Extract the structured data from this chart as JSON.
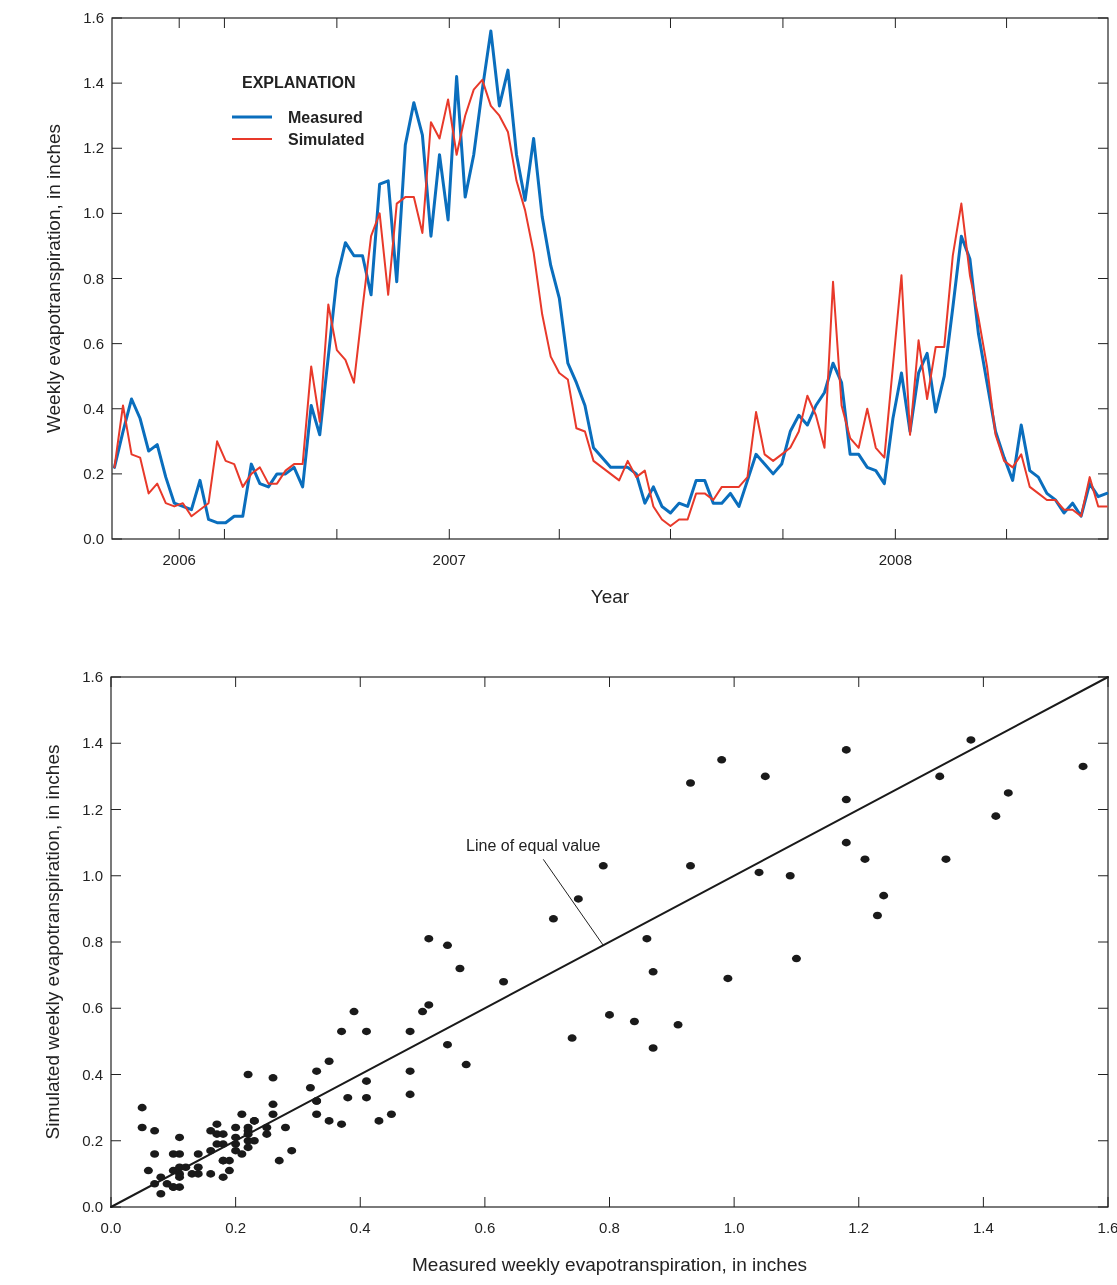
{
  "chart_data": [
    {
      "type": "line",
      "xlabel": "Year",
      "ylabel": "Weekly evapotranspiration, in inches",
      "legend_title": "EXPLANATION",
      "legend": "top left",
      "x": [
        "2006-04-02",
        "2006-04-09",
        "2006-04-16",
        "2006-04-23",
        "2006-04-30",
        "2006-05-07",
        "2006-05-14",
        "2006-05-21",
        "2006-05-28",
        "2006-06-04",
        "2006-06-11",
        "2006-06-18",
        "2006-06-25",
        "2006-07-02",
        "2006-07-09",
        "2006-07-16",
        "2006-07-23",
        "2006-07-30",
        "2006-08-06",
        "2006-08-13",
        "2006-08-20",
        "2006-08-27",
        "2006-09-03",
        "2006-09-10",
        "2006-09-17",
        "2006-09-24",
        "2006-10-01",
        "2006-10-08",
        "2006-10-15",
        "2006-10-22",
        "2006-10-29",
        "2006-11-05",
        "2006-11-12",
        "2006-11-19",
        "2006-11-26",
        "2006-12-03",
        "2006-12-10",
        "2006-12-17",
        "2006-12-24",
        "2006-12-31",
        "2007-01-07",
        "2007-01-14",
        "2007-01-21",
        "2007-01-28",
        "2007-02-04",
        "2007-02-11",
        "2007-02-18",
        "2007-02-25",
        "2007-03-04",
        "2007-03-11",
        "2007-03-18",
        "2007-03-25",
        "2007-04-01",
        "2007-04-08",
        "2007-04-15",
        "2007-04-22",
        "2007-04-29",
        "2007-05-06",
        "2007-05-13",
        "2007-05-20",
        "2007-05-27",
        "2007-06-03",
        "2007-06-10",
        "2007-06-17",
        "2007-06-24",
        "2007-07-01",
        "2007-07-08",
        "2007-07-15",
        "2007-07-22",
        "2007-07-29",
        "2007-08-05",
        "2007-08-12",
        "2007-08-19",
        "2007-08-26",
        "2007-09-02",
        "2007-09-09",
        "2007-09-16",
        "2007-09-23",
        "2007-09-30",
        "2007-10-07",
        "2007-10-14",
        "2007-10-21",
        "2007-10-28",
        "2007-11-04",
        "2007-11-11",
        "2007-11-18",
        "2007-11-25",
        "2007-12-02",
        "2007-12-09",
        "2007-12-16",
        "2007-12-23",
        "2007-12-30",
        "2008-01-06",
        "2008-01-13",
        "2008-01-20",
        "2008-01-27",
        "2008-02-03",
        "2008-02-10",
        "2008-02-17",
        "2008-02-24",
        "2008-03-02",
        "2008-03-09",
        "2008-03-16",
        "2008-03-23",
        "2008-03-30",
        "2008-04-06",
        "2008-04-13",
        "2008-04-20",
        "2008-04-27",
        "2008-05-04",
        "2008-05-11",
        "2008-05-18",
        "2008-05-25",
        "2008-06-01",
        "2008-06-08",
        "2008-06-15",
        "2008-06-22"
      ],
      "series": [
        {
          "name": "Measured",
          "color": "#0a6ebd",
          "values": [
            0.22,
            0.33,
            0.43,
            0.37,
            0.27,
            0.29,
            0.19,
            0.11,
            0.1,
            0.09,
            0.18,
            0.06,
            0.05,
            0.05,
            0.07,
            0.07,
            0.23,
            0.17,
            0.16,
            0.2,
            0.2,
            0.22,
            0.16,
            0.41,
            0.32,
            0.56,
            0.8,
            0.91,
            0.87,
            0.87,
            0.75,
            1.09,
            1.1,
            0.79,
            1.21,
            1.34,
            1.24,
            0.93,
            1.18,
            0.98,
            1.42,
            1.05,
            1.18,
            1.38,
            1.56,
            1.33,
            1.44,
            1.18,
            1.04,
            1.23,
            0.99,
            0.84,
            0.74,
            0.54,
            0.48,
            0.41,
            0.28,
            0.25,
            0.22,
            0.22,
            0.22,
            0.2,
            0.11,
            0.16,
            0.1,
            0.08,
            0.11,
            0.1,
            0.18,
            0.18,
            0.11,
            0.11,
            0.14,
            0.1,
            0.18,
            0.26,
            0.23,
            0.2,
            0.23,
            0.33,
            0.38,
            0.35,
            0.41,
            0.45,
            0.54,
            0.48,
            0.26,
            0.26,
            0.22,
            0.21,
            0.17,
            0.37,
            0.51,
            0.33,
            0.51,
            0.57,
            0.39,
            0.5,
            0.71,
            0.93,
            0.86,
            0.63,
            0.48,
            0.33,
            0.25,
            0.18,
            0.35,
            0.21,
            0.19,
            0.14,
            0.12,
            0.08,
            0.11,
            0.07,
            0.17,
            0.13,
            0.14
          ]
        },
        {
          "name": "Simulated",
          "color": "#e8392a",
          "values": [
            0.22,
            0.41,
            0.26,
            0.25,
            0.14,
            0.17,
            0.11,
            0.1,
            0.11,
            0.07,
            0.09,
            0.11,
            0.3,
            0.24,
            0.23,
            0.16,
            0.2,
            0.22,
            0.17,
            0.17,
            0.21,
            0.23,
            0.23,
            0.53,
            0.36,
            0.72,
            0.58,
            0.55,
            0.48,
            0.71,
            0.93,
            1.0,
            0.75,
            1.03,
            1.05,
            1.05,
            0.94,
            1.28,
            1.23,
            1.35,
            1.18,
            1.3,
            1.38,
            1.41,
            1.33,
            1.3,
            1.25,
            1.1,
            1.01,
            0.88,
            0.69,
            0.56,
            0.51,
            0.49,
            0.34,
            0.33,
            0.24,
            0.22,
            0.2,
            0.18,
            0.24,
            0.19,
            0.21,
            0.1,
            0.06,
            0.04,
            0.06,
            0.06,
            0.14,
            0.14,
            0.12,
            0.16,
            0.16,
            0.16,
            0.19,
            0.39,
            0.26,
            0.24,
            0.26,
            0.28,
            0.33,
            0.44,
            0.38,
            0.28,
            0.79,
            0.41,
            0.31,
            0.28,
            0.4,
            0.28,
            0.25,
            0.53,
            0.81,
            0.32,
            0.61,
            0.43,
            0.59,
            0.59,
            0.87,
            1.03,
            0.81,
            0.68,
            0.53,
            0.32,
            0.24,
            0.22,
            0.26,
            0.16,
            0.14,
            0.12,
            0.12,
            0.09,
            0.09,
            0.07,
            0.19,
            0.1,
            0.1
          ]
        }
      ],
      "xlim": [
        "2006-03-31",
        "2008-06-23"
      ],
      "xticks": [
        {
          "value": "2006-05-25",
          "label": "2006"
        },
        {
          "value": "2006-07-01",
          "label": null
        },
        {
          "value": "2006-10-01",
          "label": null
        },
        {
          "value": "2007-01-01",
          "label": "2007"
        },
        {
          "value": "2007-04-01",
          "label": null
        },
        {
          "value": "2007-07-01",
          "label": null
        },
        {
          "value": "2007-10-01",
          "label": null
        },
        {
          "value": "2008-01-01",
          "label": "2008"
        },
        {
          "value": "2008-04-01",
          "label": null
        }
      ],
      "ylim": [
        0,
        1.6
      ],
      "yticks": [
        {
          "value": 0,
          "label": "0.0"
        },
        {
          "value": 0.2,
          "label": "0.2"
        },
        {
          "value": 0.4,
          "label": "0.4"
        },
        {
          "value": 0.6,
          "label": "0.6"
        },
        {
          "value": 0.8,
          "label": "0.8"
        },
        {
          "value": 1,
          "label": "1.0"
        },
        {
          "value": 1.2,
          "label": "1.2"
        },
        {
          "value": 1.4,
          "label": "1.4"
        },
        {
          "value": 1.6,
          "label": "1.6"
        }
      ]
    },
    {
      "type": "scatter",
      "xlabel": "Measured weekly evapotranspiration, in inches",
      "ylabel": "Simulated weekly evapotranspiration, in inches",
      "annotations": [
        {
          "text": "Line of equal value",
          "x": 0.79,
          "y": 0.79
        }
      ],
      "series": [
        {
          "color": "#1a1a1a",
          "marker": "circle",
          "x": [
            0.22,
            0.33,
            0.43,
            0.37,
            0.27,
            0.29,
            0.19,
            0.11,
            0.1,
            0.09,
            0.18,
            0.06,
            0.05,
            0.05,
            0.07,
            0.07,
            0.23,
            0.17,
            0.16,
            0.2,
            0.2,
            0.22,
            0.16,
            0.41,
            0.32,
            0.56,
            0.8,
            0.91,
            0.87,
            0.87,
            0.75,
            1.09,
            1.1,
            0.79,
            1.21,
            1.34,
            1.24,
            0.93,
            1.18,
            0.98,
            1.42,
            1.05,
            1.18,
            1.38,
            1.56,
            1.33,
            1.44,
            1.18,
            1.04,
            1.23,
            0.99,
            0.84,
            0.74,
            0.54,
            0.48,
            0.41,
            0.28,
            0.25,
            0.22,
            0.22,
            0.22,
            0.2,
            0.11,
            0.16,
            0.1,
            0.08,
            0.11,
            0.1,
            0.18,
            0.18,
            0.11,
            0.11,
            0.14,
            0.1,
            0.18,
            0.26,
            0.23,
            0.2,
            0.23,
            0.33,
            0.38,
            0.35,
            0.41,
            0.45,
            0.54,
            0.48,
            0.26,
            0.26,
            0.22,
            0.21,
            0.17,
            0.37,
            0.51,
            0.33,
            0.51,
            0.57,
            0.39,
            0.5,
            0.71,
            0.93,
            0.86,
            0.63,
            0.48,
            0.33,
            0.25,
            0.18,
            0.35,
            0.21,
            0.19,
            0.14,
            0.12,
            0.08,
            0.11,
            0.07,
            0.17,
            0.13,
            0.14
          ],
          "values": [
            0.22,
            0.41,
            0.26,
            0.25,
            0.14,
            0.17,
            0.11,
            0.1,
            0.11,
            0.07,
            0.09,
            0.11,
            0.3,
            0.24,
            0.23,
            0.16,
            0.2,
            0.22,
            0.17,
            0.17,
            0.21,
            0.23,
            0.23,
            0.53,
            0.36,
            0.72,
            0.58,
            0.55,
            0.48,
            0.71,
            0.93,
            1.0,
            0.75,
            1.03,
            1.05,
            1.05,
            0.94,
            1.28,
            1.23,
            1.35,
            1.18,
            1.3,
            1.38,
            1.41,
            1.33,
            1.3,
            1.25,
            1.1,
            1.01,
            0.88,
            0.69,
            0.56,
            0.51,
            0.49,
            0.34,
            0.33,
            0.24,
            0.22,
            0.2,
            0.18,
            0.24,
            0.19,
            0.21,
            0.1,
            0.06,
            0.04,
            0.06,
            0.06,
            0.14,
            0.14,
            0.12,
            0.16,
            0.16,
            0.16,
            0.19,
            0.39,
            0.26,
            0.24,
            0.26,
            0.28,
            0.33,
            0.44,
            0.38,
            0.28,
            0.79,
            0.41,
            0.31,
            0.28,
            0.4,
            0.28,
            0.25,
            0.53,
            0.81,
            0.32,
            0.61,
            0.43,
            0.59,
            0.59,
            0.87,
            1.03,
            0.81,
            0.68,
            0.53,
            0.32,
            0.24,
            0.22,
            0.26,
            0.16,
            0.14,
            0.12,
            0.12,
            0.09,
            0.09,
            0.07,
            0.19,
            0.1,
            0.1
          ]
        },
        {
          "type": "line",
          "color": "#1a1a1a",
          "x": [
            0,
            1.6
          ],
          "values": [
            0,
            1.6
          ]
        }
      ],
      "xlim": [
        0,
        1.6
      ],
      "xticks": [
        {
          "value": 0,
          "label": "0.0"
        },
        {
          "value": 0.2,
          "label": "0.2"
        },
        {
          "value": 0.4,
          "label": "0.4"
        },
        {
          "value": 0.6,
          "label": "0.6"
        },
        {
          "value": 0.8,
          "label": "0.8"
        },
        {
          "value": 1,
          "label": "1.0"
        },
        {
          "value": 1.2,
          "label": "1.2"
        },
        {
          "value": 1.4,
          "label": "1.4"
        },
        {
          "value": 1.6,
          "label": "1.6"
        }
      ],
      "ylim": [
        0,
        1.6
      ],
      "yticks": [
        {
          "value": 0,
          "label": "0.0"
        },
        {
          "value": 0.2,
          "label": "0.2"
        },
        {
          "value": 0.4,
          "label": "0.4"
        },
        {
          "value": 0.6,
          "label": "0.6"
        },
        {
          "value": 0.8,
          "label": "0.8"
        },
        {
          "value": 1,
          "label": "1.0"
        },
        {
          "value": 1.2,
          "label": "1.2"
        },
        {
          "value": 1.4,
          "label": "1.4"
        },
        {
          "value": 1.6,
          "label": "1.6"
        }
      ]
    }
  ]
}
